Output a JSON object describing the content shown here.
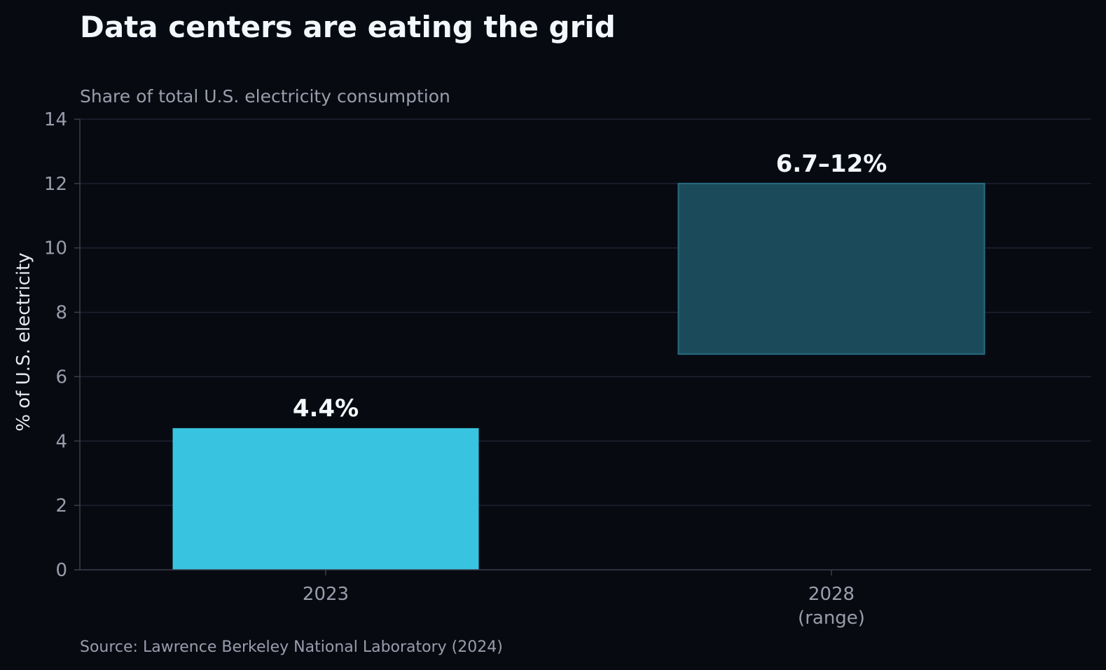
{
  "chart_data": {
    "type": "bar",
    "title": "Data centers are eating the grid",
    "subtitle": "Share of total U.S. electricity consumption",
    "ylabel": "% of U.S. electricity",
    "xlabel": "",
    "source": "Source: Lawrence Berkeley National Laboratory (2024)",
    "ylim": [
      0,
      14
    ],
    "yticks": [
      0,
      2,
      4,
      6,
      8,
      10,
      12,
      14
    ],
    "grid": true,
    "categories": [
      {
        "label": [
          "2023"
        ],
        "low": 0,
        "high": 4.4,
        "data_label": "4.4%",
        "color": "#38c4e0",
        "style": "solid"
      },
      {
        "label": [
          "2028",
          "(range)"
        ],
        "low": 6.7,
        "high": 12,
        "data_label": "6.7–12%",
        "color": "#1b4b5a",
        "edge_color": "#276b80",
        "style": "range"
      }
    ]
  }
}
